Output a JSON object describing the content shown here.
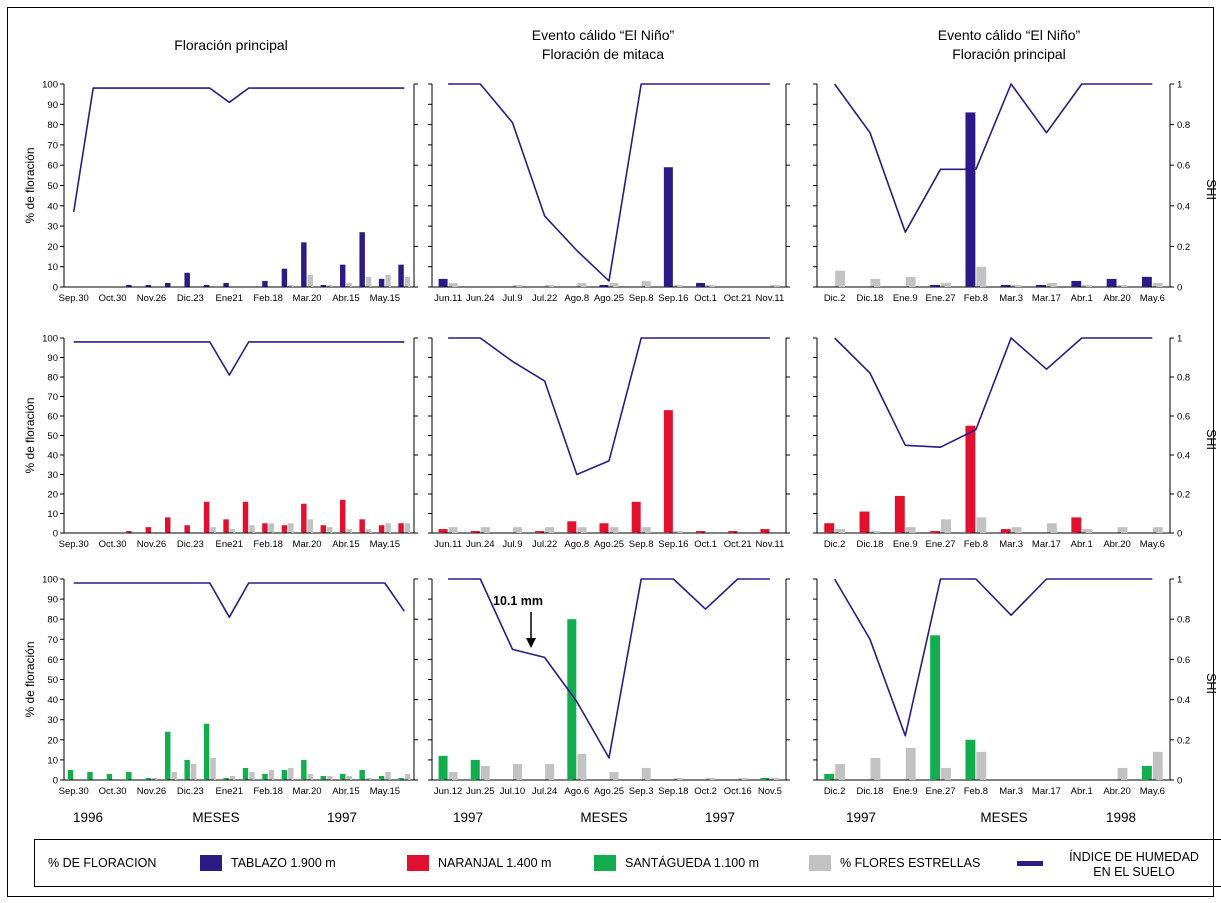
{
  "colors": {
    "tablazo": "#2e1a87",
    "naranjal": "#e0102e",
    "santagueda": "#12ad4f",
    "estrellas": "#c2c2c2",
    "shi_line": "#2e1a87"
  },
  "column_titles": [
    [
      "Floración principal"
    ],
    [
      "Evento cálido “El Niño”",
      "Floración de mitaca"
    ],
    [
      "Evento cálido “El Niño”",
      "Floración principal"
    ]
  ],
  "ylabel_left": "% de floración",
  "ylabel_right": "SHI",
  "yticks_left": [
    "0",
    "10",
    "20",
    "30",
    "40",
    "50",
    "60",
    "70",
    "80",
    "90",
    "100"
  ],
  "yticks_right": [
    "0",
    "0.2",
    "0.4",
    "0.6",
    "0.8",
    "1"
  ],
  "annotation": "10.1 mm",
  "bottom_labels": {
    "col1": {
      "start": "1996",
      "mid": "MESES",
      "end": "1997"
    },
    "col2": {
      "start": "1997",
      "mid": "MESES",
      "end": "1997"
    },
    "col3": {
      "start": "1997",
      "mid": "MESES",
      "end": "1998"
    }
  },
  "legend": {
    "title": "% DE FLORACION",
    "tablazo": "TABLAZO 1.900 m",
    "naranjal": "NARANJAL 1.400 m",
    "santagueda": "SANTÁGUEDA 1.100 m",
    "estrellas": "% FLORES ESTRELLAS",
    "shi_line1": "ÍNDICE DE HUMEDAD",
    "shi_line2": "EN EL SUELO"
  },
  "chart_data": [
    {
      "type": "bar",
      "row": 0,
      "col": 0,
      "color": "tablazo",
      "categories": [
        "Sep.30",
        "",
        "Oct.30",
        "",
        "Nov.26",
        "",
        "Dic.23",
        "",
        "Ene21",
        "",
        "Feb.18",
        "",
        "Mar.20",
        "",
        "Abr.15",
        "",
        "May.15",
        ""
      ],
      "series": [
        {
          "values": [
            0,
            0,
            0,
            1,
            1,
            2,
            7,
            1,
            2,
            0,
            3,
            9,
            22,
            1,
            11,
            27,
            4,
            11
          ]
        },
        {
          "values": [
            0,
            0,
            0,
            0,
            0,
            0,
            0,
            0,
            0,
            0,
            0,
            1,
            6,
            1,
            2,
            5,
            6,
            5
          ]
        }
      ],
      "shi": [
        0.37,
        0.98,
        0.98,
        0.98,
        0.98,
        0.98,
        0.98,
        0.98,
        0.91,
        0.98,
        0.98,
        0.98,
        0.98,
        0.98,
        0.98,
        0.98,
        0.98,
        0.98
      ],
      "ylim": [
        0,
        100
      ],
      "ylim_right": [
        0,
        1
      ]
    },
    {
      "type": "bar",
      "row": 0,
      "col": 1,
      "color": "tablazo",
      "categories": [
        "Jun.11",
        "Jun.24",
        "Jul.9",
        "Jul.22",
        "Ago.8",
        "Ago.25",
        "Sep.8",
        "Sep.16",
        "Oct.1",
        "Oct.21",
        "Nov.11"
      ],
      "series": [
        {
          "values": [
            4,
            0,
            0,
            0,
            0,
            1,
            0,
            59,
            2,
            0,
            0
          ]
        },
        {
          "values": [
            2,
            0,
            1,
            1,
            2,
            2,
            3,
            1,
            1,
            0,
            1
          ]
        }
      ],
      "shi": [
        1.0,
        1.0,
        0.81,
        0.35,
        0.18,
        0.03,
        1.0,
        1.0,
        1.0,
        1.0,
        1.0
      ],
      "ylim": [
        0,
        100
      ],
      "ylim_right": [
        0,
        1
      ]
    },
    {
      "type": "bar",
      "row": 0,
      "col": 2,
      "color": "tablazo",
      "categories": [
        "Dic.2",
        "Dic.18",
        "Ene.9",
        "Ene.27",
        "Feb.8",
        "Mar.3",
        "Mar.17",
        "Abr.1",
        "Abr.20",
        "May.6"
      ],
      "series": [
        {
          "values": [
            0,
            0,
            0,
            1,
            86,
            1,
            1,
            3,
            4,
            5
          ]
        },
        {
          "values": [
            8,
            4,
            5,
            2,
            10,
            1,
            2,
            1,
            1,
            2
          ]
        }
      ],
      "shi": [
        1.0,
        0.76,
        0.27,
        0.58,
        0.58,
        1.0,
        0.76,
        1.0,
        1.0,
        1.0
      ],
      "ylim": [
        0,
        100
      ],
      "ylim_right": [
        0,
        1
      ]
    },
    {
      "type": "bar",
      "row": 1,
      "col": 0,
      "color": "naranjal",
      "categories": [
        "Sep.30",
        "",
        "Oct.30",
        "",
        "Nov.26",
        "",
        "Dic.23",
        "",
        "Ene21",
        "",
        "Feb.18",
        "",
        "Mar.20",
        "",
        "Abr.15",
        "",
        "May.15",
        ""
      ],
      "series": [
        {
          "values": [
            0,
            0,
            0,
            1,
            3,
            8,
            4,
            16,
            7,
            16,
            5,
            4,
            15,
            4,
            17,
            7,
            4,
            5
          ]
        },
        {
          "values": [
            0,
            0,
            0,
            0,
            0,
            0,
            0,
            3,
            2,
            4,
            5,
            5,
            7,
            3,
            2,
            2,
            5,
            5
          ]
        }
      ],
      "shi": [
        0.98,
        0.98,
        0.98,
        0.98,
        0.98,
        0.98,
        0.98,
        0.98,
        0.81,
        0.98,
        0.98,
        0.98,
        0.98,
        0.98,
        0.98,
        0.98,
        0.98,
        0.98
      ],
      "ylim": [
        0,
        100
      ],
      "ylim_right": [
        0,
        1
      ]
    },
    {
      "type": "bar",
      "row": 1,
      "col": 1,
      "color": "naranjal",
      "categories": [
        "Jun.11",
        "Jun.24",
        "Jul.9",
        "Jul.22",
        "Ago.8",
        "Ago.25",
        "Sep.8",
        "Sep.16",
        "Oct.1",
        "Oct.21",
        "Nov.11"
      ],
      "series": [
        {
          "values": [
            2,
            1,
            0,
            1,
            6,
            5,
            16,
            63,
            1,
            1,
            2
          ]
        },
        {
          "values": [
            3,
            3,
            3,
            3,
            3,
            3,
            3,
            1,
            0,
            0,
            0
          ]
        }
      ],
      "shi": [
        1.0,
        1.0,
        0.88,
        0.78,
        0.3,
        0.37,
        1.0,
        1.0,
        1.0,
        1.0,
        1.0
      ],
      "ylim": [
        0,
        100
      ],
      "ylim_right": [
        0,
        1
      ]
    },
    {
      "type": "bar",
      "row": 1,
      "col": 2,
      "color": "naranjal",
      "categories": [
        "Dic.2",
        "Dic.18",
        "Ene.9",
        "Ene.27",
        "Feb.8",
        "Mar.3",
        "Mar.17",
        "Abr.1",
        "Abr.20",
        "May.6"
      ],
      "series": [
        {
          "values": [
            5,
            11,
            19,
            1,
            55,
            2,
            0,
            8,
            0,
            0
          ]
        },
        {
          "values": [
            2,
            1,
            3,
            7,
            8,
            3,
            5,
            2,
            3,
            3
          ]
        }
      ],
      "shi": [
        1.0,
        0.82,
        0.45,
        0.44,
        0.53,
        1.0,
        0.84,
        1.0,
        1.0,
        1.0
      ],
      "ylim": [
        0,
        100
      ],
      "ylim_right": [
        0,
        1
      ]
    },
    {
      "type": "bar",
      "row": 2,
      "col": 0,
      "color": "santagueda",
      "categories": [
        "Sep.30",
        "",
        "Oct.30",
        "",
        "Nov.26",
        "",
        "Dic.23",
        "",
        "Ene21",
        "",
        "Feb.18",
        "",
        "Mar.20",
        "",
        "Abr.15",
        "",
        "May.15",
        ""
      ],
      "series": [
        {
          "values": [
            5,
            4,
            3,
            4,
            1,
            24,
            10,
            28,
            1,
            6,
            3,
            5,
            10,
            2,
            3,
            5,
            2,
            1
          ]
        },
        {
          "values": [
            0,
            0,
            0,
            0,
            1,
            4,
            8,
            11,
            2,
            4,
            5,
            6,
            3,
            2,
            2,
            1,
            4,
            3
          ]
        }
      ],
      "shi": [
        0.98,
        0.98,
        0.98,
        0.98,
        0.98,
        0.98,
        0.98,
        0.98,
        0.81,
        0.98,
        0.98,
        0.98,
        0.98,
        0.98,
        0.98,
        0.98,
        0.98,
        0.84
      ],
      "ylim": [
        0,
        100
      ],
      "ylim_right": [
        0,
        1
      ]
    },
    {
      "type": "bar",
      "row": 2,
      "col": 1,
      "color": "santagueda",
      "categories": [
        "Jun.12",
        "Jun.25",
        "Jul.10",
        "Jul.24",
        "Ago.6",
        "Ago.25",
        "Sep.3",
        "Sep.18",
        "Oct.2",
        "Oct.16",
        "Nov.5"
      ],
      "series": [
        {
          "values": [
            12,
            10,
            0,
            0,
            80,
            0,
            0,
            0,
            0,
            0,
            1
          ]
        },
        {
          "values": [
            4,
            7,
            8,
            8,
            13,
            4,
            6,
            1,
            1,
            1,
            1
          ]
        }
      ],
      "shi": [
        1.0,
        1.0,
        0.65,
        0.61,
        0.39,
        0.11,
        1.0,
        1.0,
        0.85,
        1.0,
        1.0
      ],
      "ylim": [
        0,
        100
      ],
      "ylim_right": [
        0,
        1
      ]
    },
    {
      "type": "bar",
      "row": 2,
      "col": 2,
      "color": "santagueda",
      "categories": [
        "Dic.2",
        "Dic.18",
        "Ene.9",
        "Ene.27",
        "Feb.8",
        "Mar.3",
        "Mar.17",
        "Abr.1",
        "Abr.20",
        "May.6"
      ],
      "series": [
        {
          "values": [
            3,
            0,
            0,
            72,
            20,
            0,
            0,
            0,
            0,
            7
          ]
        },
        {
          "values": [
            8,
            11,
            16,
            6,
            14,
            0,
            0,
            0,
            6,
            14
          ]
        }
      ],
      "shi": [
        1.0,
        0.7,
        0.22,
        1.0,
        1.0,
        0.82,
        1.0,
        1.0,
        1.0,
        1.0
      ],
      "ylim": [
        0,
        100
      ],
      "ylim_right": [
        0,
        1
      ]
    }
  ]
}
